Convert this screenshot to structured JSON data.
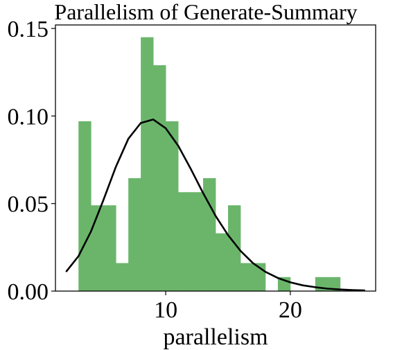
{
  "chart_data": {
    "type": "bar",
    "title": "Parallelism of Generate-Summary",
    "xlabel": "parallelism",
    "ylabel": "",
    "xlim": [
      1.15,
      26.85
    ],
    "ylim": [
      0,
      0.152
    ],
    "x_ticks": [
      10,
      20
    ],
    "x_tick_labels": [
      "10",
      "20"
    ],
    "y_ticks": [
      0.0,
      0.05,
      0.1,
      0.15
    ],
    "y_tick_labels": [
      "0.00",
      "0.05",
      "0.10",
      "0.15"
    ],
    "grid": false,
    "histogram": {
      "color": "#6bb56b",
      "bins": [
        {
          "x0": 3.0,
          "x1": 4.0,
          "density": 0.097
        },
        {
          "x0": 4.0,
          "x1": 5.0,
          "density": 0.049
        },
        {
          "x0": 5.0,
          "x1": 6.0,
          "density": 0.049
        },
        {
          "x0": 6.0,
          "x1": 7.0,
          "density": 0.016
        },
        {
          "x0": 7.0,
          "x1": 8.0,
          "density": 0.0645
        },
        {
          "x0": 8.0,
          "x1": 9.0,
          "density": 0.145
        },
        {
          "x0": 9.0,
          "x1": 10.0,
          "density": 0.129
        },
        {
          "x0": 10.0,
          "x1": 11.0,
          "density": 0.097
        },
        {
          "x0": 11.0,
          "x1": 12.0,
          "density": 0.0565
        },
        {
          "x0": 12.0,
          "x1": 13.0,
          "density": 0.0565
        },
        {
          "x0": 13.0,
          "x1": 14.0,
          "density": 0.0645
        },
        {
          "x0": 14.0,
          "x1": 15.0,
          "density": 0.033
        },
        {
          "x0": 15.0,
          "x1": 16.0,
          "density": 0.049
        },
        {
          "x0": 16.0,
          "x1": 17.0,
          "density": 0.016
        },
        {
          "x0": 17.0,
          "x1": 18.0,
          "density": 0.016
        },
        {
          "x0": 18.0,
          "x1": 19.0,
          "density": 0.0
        },
        {
          "x0": 19.0,
          "x1": 20.0,
          "density": 0.008
        },
        {
          "x0": 20.0,
          "x1": 21.0,
          "density": 0.0
        },
        {
          "x0": 21.0,
          "x1": 22.0,
          "density": 0.0
        },
        {
          "x0": 22.0,
          "x1": 23.0,
          "density": 0.008
        },
        {
          "x0": 23.0,
          "x1": 24.0,
          "density": 0.008
        }
      ]
    },
    "fit_curve": {
      "type": "line",
      "color": "#000000",
      "points": [
        [
          2.0,
          0.011
        ],
        [
          3.0,
          0.02
        ],
        [
          4.0,
          0.034
        ],
        [
          5.0,
          0.052
        ],
        [
          6.0,
          0.071
        ],
        [
          7.0,
          0.087
        ],
        [
          8.0,
          0.096
        ],
        [
          9.0,
          0.098
        ],
        [
          10.0,
          0.093
        ],
        [
          11.0,
          0.083
        ],
        [
          12.0,
          0.07
        ],
        [
          13.0,
          0.056
        ],
        [
          14.0,
          0.043
        ],
        [
          15.0,
          0.032
        ],
        [
          16.0,
          0.023
        ],
        [
          17.0,
          0.016
        ],
        [
          18.0,
          0.011
        ],
        [
          19.0,
          0.0075
        ],
        [
          20.0,
          0.005
        ],
        [
          21.0,
          0.0033
        ],
        [
          22.0,
          0.0022
        ],
        [
          23.0,
          0.0014
        ],
        [
          24.0,
          0.0009
        ],
        [
          25.0,
          0.0006
        ],
        [
          26.0,
          0.0004
        ]
      ]
    }
  }
}
